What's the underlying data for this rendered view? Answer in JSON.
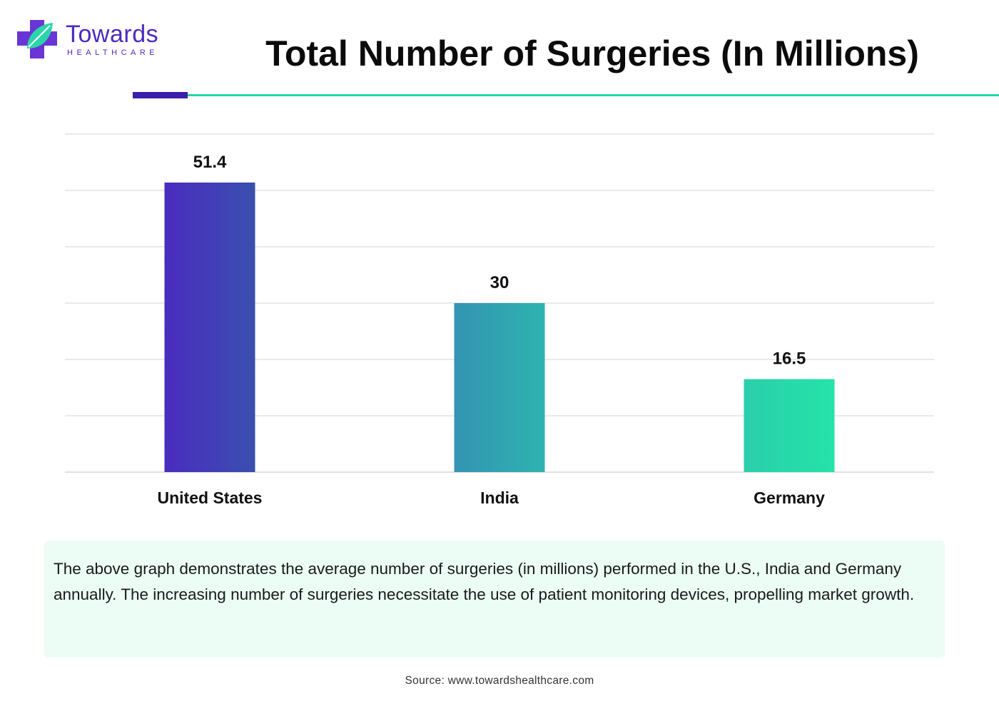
{
  "brand": {
    "name": "Towards",
    "sub": "HEALTHCARE"
  },
  "title": "Total Number of Surgeries (In Millions)",
  "chart_data": {
    "type": "bar",
    "title": "Total Number of Surgeries (In Millions)",
    "categories": [
      "United States",
      "India",
      "Germany"
    ],
    "values": [
      51.4,
      30,
      16.5
    ],
    "value_labels": [
      "51.4",
      "30",
      "16.5"
    ],
    "ylim": [
      0,
      60
    ],
    "xlabel": "",
    "ylabel": "",
    "grid": true,
    "colors": [
      [
        "#4a2cbf",
        "#3a4faf"
      ],
      [
        "#3394b2",
        "#2eb3b0"
      ],
      [
        "#2acfab",
        "#24e3a8"
      ]
    ]
  },
  "description": "The above graph demonstrates the average number of surgeries (in millions) performed in the U.S., India and Germany annually. The increasing number of surgeries necessitate the use of patient monitoring devices, propelling market growth.",
  "source": "Source: www.towardshealthcare.com"
}
